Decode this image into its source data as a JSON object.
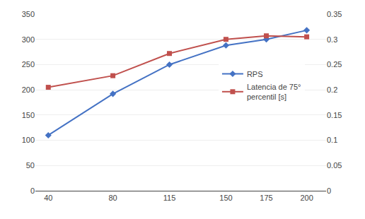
{
  "chart_data": {
    "type": "line",
    "x": [
      40,
      80,
      115,
      150,
      175,
      200
    ],
    "xlim": [
      32,
      212
    ],
    "xticks": [
      40,
      80,
      115,
      150,
      175,
      200
    ],
    "ylim": [
      0,
      350
    ],
    "yticks": [
      0,
      50,
      100,
      150,
      200,
      250,
      300,
      350
    ],
    "y2lim": [
      0,
      0.35
    ],
    "y2ticks": [
      0,
      0.05,
      0.1,
      0.15,
      0.2,
      0.25,
      0.3,
      0.35
    ],
    "grid": true,
    "legend": "right",
    "series": [
      {
        "name": "RPS",
        "color": "#4472C4",
        "marker": "diamond",
        "values": [
          110,
          192,
          250,
          288,
          300,
          318
        ]
      },
      {
        "name": "Latencia de 75°\npercentil [s]",
        "color": "#C0504D",
        "marker": "square",
        "axis": "y2",
        "values": [
          0.205,
          0.228,
          0.272,
          0.3,
          0.307,
          0.305
        ]
      }
    ]
  }
}
